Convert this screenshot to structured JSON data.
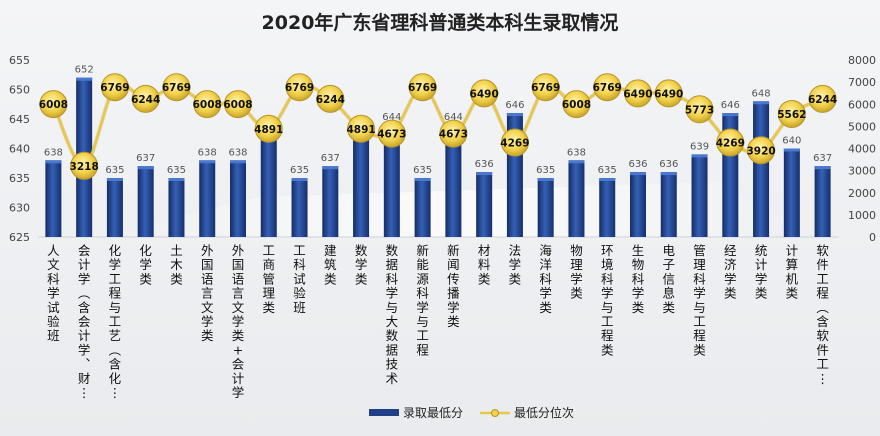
{
  "chart_data": {
    "type": "bar",
    "title": "2020年广东省理科普通类本科生录取情况",
    "categories": [
      "人文科学试验班",
      "会计学（含会计学、财…",
      "化学工程与工艺（含化…",
      "化学类",
      "土木类",
      "外国语言文学类",
      "外国语言文学类+会计学…",
      "工商管理类",
      "工科试验班",
      "建筑类",
      "数学类",
      "数据科学与大数据技术",
      "新能源科学与工程",
      "新闻传播学类",
      "材料类",
      "法学类",
      "海洋科学类",
      "物理学类",
      "环境科学与工程类",
      "生物科学类",
      "电子信息类",
      "管理科学与工程类",
      "经济学类",
      "统计学类",
      "计算机类",
      "软件工程（含软件工…"
    ],
    "series": [
      {
        "name": "录取最低分",
        "type": "bar",
        "axis": "left",
        "values": [
          638,
          652,
          635,
          637,
          635,
          638,
          638,
          643,
          635,
          637,
          643,
          644,
          635,
          644,
          636,
          646,
          635,
          638,
          635,
          636,
          636,
          639,
          646,
          648,
          640,
          637
        ]
      },
      {
        "name": "最低分位次",
        "type": "line",
        "axis": "right",
        "values": [
          6008,
          3218,
          6769,
          6244,
          6769,
          6008,
          6008,
          4891,
          6769,
          6244,
          4891,
          4673,
          6769,
          4673,
          6490,
          4269,
          6769,
          6008,
          6769,
          6490,
          6490,
          5773,
          4269,
          3920,
          5562,
          6244
        ]
      }
    ],
    "y_left": {
      "min": 625,
      "max": 655,
      "ticks": [
        625,
        630,
        635,
        640,
        645,
        650,
        655
      ]
    },
    "y_right": {
      "min": 0,
      "max": 8000,
      "ticks": [
        0,
        1000,
        2000,
        3000,
        4000,
        5000,
        6000,
        7000,
        8000
      ]
    },
    "legend_position": "bottom",
    "colors": {
      "bar": "#1f3f86",
      "bar_light": "#3a64b8",
      "line": "#e7c64c",
      "marker": "#f2d24a",
      "marker_edge": "#b8962a"
    }
  }
}
